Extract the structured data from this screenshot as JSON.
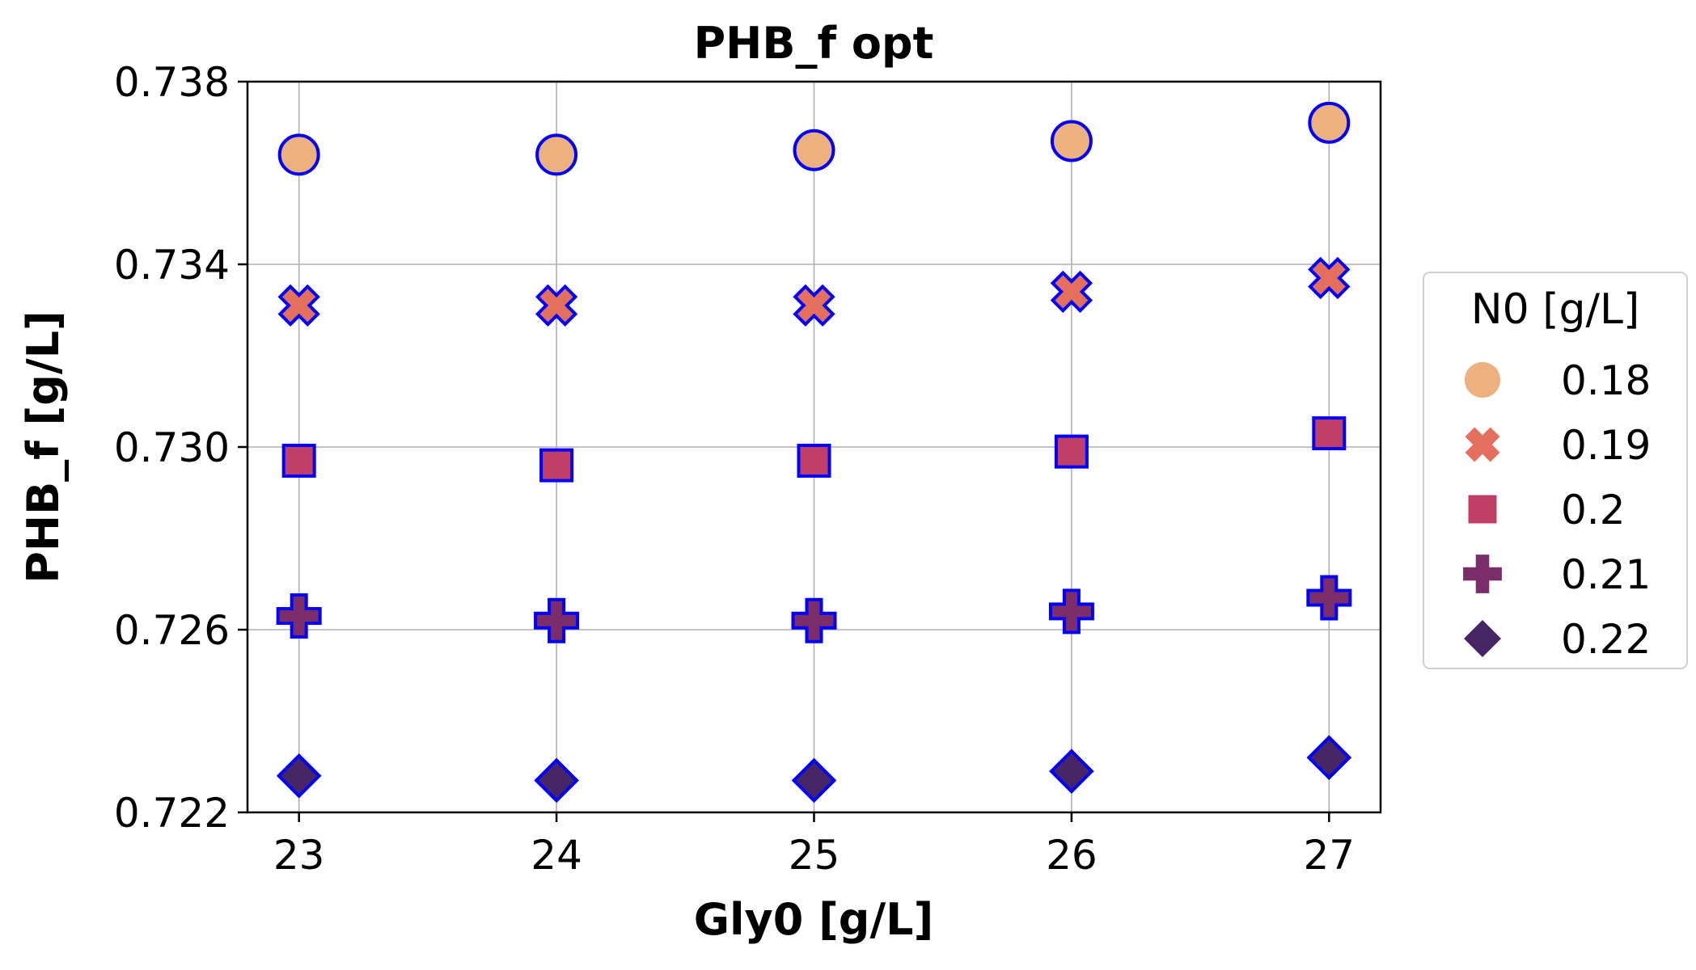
{
  "chart_data": {
    "type": "scatter",
    "title": "PHB_f opt",
    "xlabel": "Gly0 [g/L]",
    "ylabel": "PHB_f [g/L]",
    "x": [
      23,
      24,
      25,
      26,
      27
    ],
    "x_ticks": [
      "23",
      "24",
      "25",
      "26",
      "27"
    ],
    "xlim": [
      22.8,
      27.2
    ],
    "ylim": [
      0.722,
      0.738
    ],
    "y_ticks": [
      "0.722",
      "0.726",
      "0.730",
      "0.734",
      "0.738"
    ],
    "grid": true,
    "legend": {
      "title": "N0 [g/L]",
      "placement": "center-right-outside"
    },
    "series": [
      {
        "name": "0.18",
        "marker": "circle",
        "color": "#edb07f",
        "values": [
          0.7364,
          0.7364,
          0.7365,
          0.7367,
          0.7371
        ]
      },
      {
        "name": "0.19",
        "marker": "x",
        "color": "#e56f5d",
        "values": [
          0.7331,
          0.7331,
          0.7331,
          0.7334,
          0.7337
        ]
      },
      {
        "name": "0.2",
        "marker": "square",
        "color": "#bf3f66",
        "values": [
          0.7297,
          0.7296,
          0.7297,
          0.7299,
          0.7303
        ]
      },
      {
        "name": "0.21",
        "marker": "plus",
        "color": "#7b2d6a",
        "values": [
          0.7263,
          0.7262,
          0.7262,
          0.7264,
          0.7267
        ]
      },
      {
        "name": "0.22",
        "marker": "diamond",
        "color": "#472565",
        "values": [
          0.7228,
          0.7227,
          0.7227,
          0.7229,
          0.7232
        ]
      }
    ],
    "marker_edge_color": "#0000ff"
  }
}
